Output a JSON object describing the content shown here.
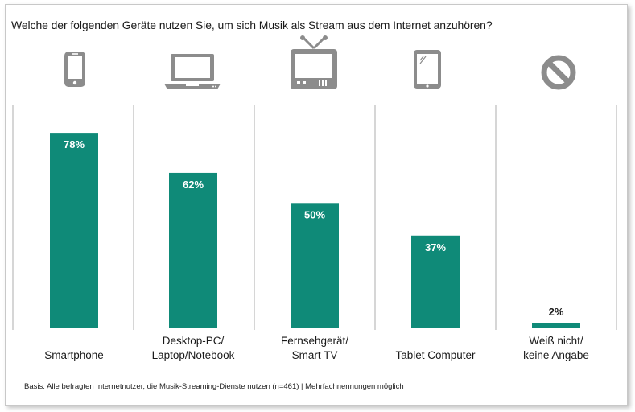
{
  "title": "Welche der folgenden Geräte nutzen Sie, um sich Musik als Stream aus dem Internet anzuhören?",
  "footnote": "Basis: Alle befragten Internetnutzer, die Musik-Streaming-Dienste nutzen (n=461) | Mehrfachnennungen möglich",
  "colors": {
    "bar": "#0f8a78",
    "icon": "#8c8c8c",
    "divider": "#bfbfbf"
  },
  "icons": [
    "smartphone-icon",
    "laptop-icon",
    "tv-icon",
    "tablet-icon",
    "no-entry-icon"
  ],
  "chart_data": {
    "type": "bar",
    "categories": [
      [
        "Smartphone"
      ],
      [
        "Desktop-PC/",
        "Laptop/Notebook"
      ],
      [
        "Fernsehgerät/",
        "Smart TV"
      ],
      [
        "Tablet Computer"
      ],
      [
        "Weiß nicht/",
        "keine Angabe"
      ]
    ],
    "values": [
      78,
      62,
      50,
      37,
      2
    ],
    "value_labels": [
      "78%",
      "62%",
      "50%",
      "37%",
      "2%"
    ],
    "unit": "%",
    "ylim": [
      0,
      100
    ],
    "grid": false,
    "legend": "none"
  }
}
